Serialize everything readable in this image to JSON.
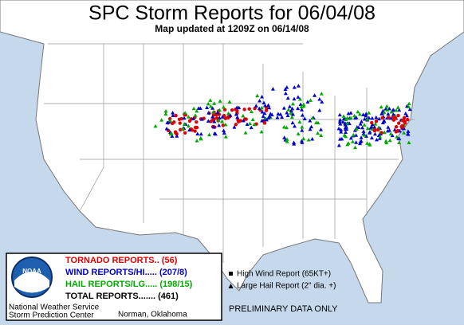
{
  "header": {
    "title": "SPC Storm Reports for 06/04/08",
    "subtitle": "Map updated at 1209Z on 06/14/08"
  },
  "legend": {
    "tornado": "TORNADO REPORTS.. (56)",
    "wind": "WIND REPORTS/HI..... (207/8)",
    "hail": "HAIL REPORTS/LG..... (198/15)",
    "total": "TOTAL REPORTS....... (461)",
    "logo": "NOAA",
    "agency": "National Weather Service",
    "center": "Storm Prediction Center",
    "city": "Norman, Oklahoma"
  },
  "key": {
    "high_wind": "High Wind Report (65KT+)",
    "large_hail": "Large Hail Report (2\" dia. +)"
  },
  "note": "PRELIMINARY DATA ONLY"
}
